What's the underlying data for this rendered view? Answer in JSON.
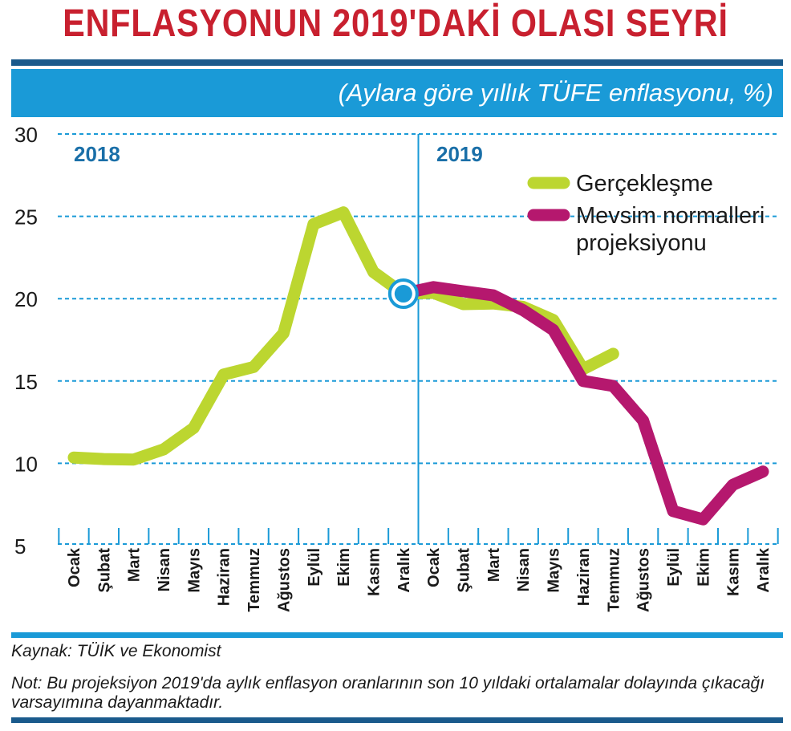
{
  "header": {
    "title": "ENFLASYONUN 2019'DAKİ OLASI SEYRİ",
    "subtitle": "(Aylara göre yıllık TÜFE enflasyonu, %)"
  },
  "footer": {
    "source": "Kaynak: TÜİK ve Ekonomist",
    "note": "Not: Bu projeksiyon 2019'da aylık enflasyon oranlarının son 10 yıldaki ortalamalar dolayında çıkacağı varsayımına dayanmaktadır."
  },
  "colors": {
    "title": "#c8202f",
    "band": "#1a9ad7",
    "rule_dark": "#1a5a8c",
    "actual": "#bcd630",
    "projection": "#b5186e",
    "grid": "#1a9ad7",
    "year_label": "#1a6fa8"
  },
  "chart_data": {
    "type": "line",
    "title": "ENFLASYONUN 2019'DAKİ OLASI SEYRİ",
    "subtitle": "(Aylara göre yıllık TÜFE enflasyonu, %)",
    "xlabel": "",
    "ylabel": "",
    "ylim": [
      5,
      30
    ],
    "yticks": [
      5,
      10,
      15,
      20,
      25,
      30
    ],
    "grid": true,
    "legend_position": "top-right",
    "year_labels": [
      "2018",
      "2019"
    ],
    "categories": [
      "Ocak",
      "Şubat",
      "Mart",
      "Nisan",
      "Mayıs",
      "Haziran",
      "Temmuz",
      "Ağustos",
      "Eylül",
      "Ekim",
      "Kasım",
      "Aralık",
      "Ocak",
      "Şubat",
      "Mart",
      "Nisan",
      "Mayıs",
      "Haziran",
      "Temmuz",
      "Ağustos",
      "Eylül",
      "Ekim",
      "Kasım",
      "Aralık"
    ],
    "series": [
      {
        "name": "Gerçekleşme",
        "values": [
          10.35,
          10.26,
          10.23,
          10.85,
          12.15,
          15.39,
          15.85,
          17.9,
          24.52,
          25.24,
          21.62,
          20.3,
          20.35,
          19.67,
          19.71,
          19.5,
          18.71,
          15.72,
          16.65,
          null,
          null,
          null,
          null,
          null
        ]
      },
      {
        "name": "Mevsim normalleri projeksiyonu",
        "values": [
          null,
          null,
          null,
          null,
          null,
          null,
          null,
          null,
          null,
          null,
          null,
          20.3,
          20.7,
          20.45,
          20.2,
          19.3,
          18.1,
          15.0,
          14.7,
          12.6,
          7.1,
          6.6,
          8.7,
          9.5
        ]
      }
    ],
    "marker": {
      "index": 11,
      "value": 20.3
    }
  }
}
